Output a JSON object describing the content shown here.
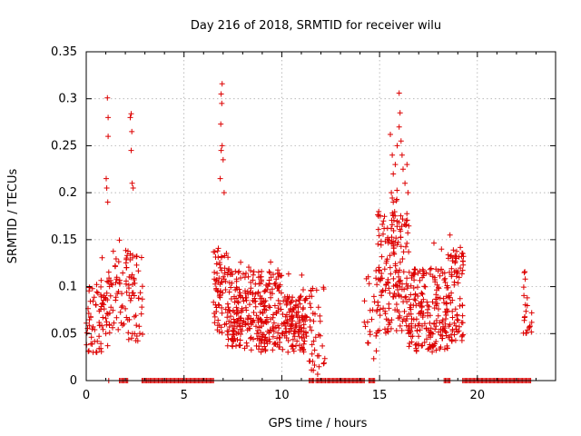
{
  "chart_data": {
    "type": "scatter",
    "title": "Day 216 of 2018, SRMTID for receiver wilu",
    "xlabel": "GPS time / hours",
    "ylabel": "SRMTID / TECUs",
    "xlim": [
      0,
      24
    ],
    "ylim": [
      0,
      0.35
    ],
    "x_ticks": [
      0,
      5,
      10,
      15,
      20
    ],
    "x_tick_labels": [
      "0",
      "5",
      "10",
      "15",
      "20"
    ],
    "y_ticks": [
      0,
      0.05,
      0.1,
      0.15,
      0.2,
      0.25,
      0.3,
      0.35
    ],
    "y_tick_labels": [
      "0",
      "0.05",
      "0.1",
      "0.15",
      "0.2",
      "0.25",
      "0.3",
      "0.35"
    ],
    "grid": true,
    "marker": "plus",
    "series_color": "#dd0000",
    "clusters": [
      {
        "name": "00-01h",
        "x_range": [
          0.0,
          1.1
        ],
        "base_range": [
          0.03,
          0.1
        ],
        "n": 70
      },
      {
        "name": "01-02h",
        "x_range": [
          1.0,
          2.0
        ],
        "base_range": [
          0.05,
          0.13
        ],
        "n": 45
      },
      {
        "name": "02-03h",
        "x_range": [
          2.0,
          2.9
        ],
        "base_range": [
          0.04,
          0.14
        ],
        "n": 60
      },
      {
        "name": "06-07h",
        "x_range": [
          6.5,
          7.3
        ],
        "base_range": [
          0.05,
          0.14
        ],
        "n": 70
      },
      {
        "name": "07-10h",
        "x_range": [
          7.2,
          10.0
        ],
        "base_range": [
          0.03,
          0.12
        ],
        "n": 300
      },
      {
        "name": "10-11h",
        "x_range": [
          10.0,
          11.3
        ],
        "base_range": [
          0.03,
          0.09
        ],
        "n": 130
      },
      {
        "name": "11-12h",
        "x_range": [
          11.4,
          12.2
        ],
        "base_range": [
          0.005,
          0.1
        ],
        "n": 40
      },
      {
        "name": "14-15h",
        "x_range": [
          14.2,
          14.9
        ],
        "base_range": [
          0.02,
          0.12
        ],
        "n": 25
      },
      {
        "name": "15-16.5h",
        "x_range": [
          14.9,
          16.5
        ],
        "base_range": [
          0.05,
          0.18
        ],
        "n": 180
      },
      {
        "name": "16.5-18.5h",
        "x_range": [
          16.5,
          18.5
        ],
        "base_range": [
          0.03,
          0.12
        ],
        "n": 200
      },
      {
        "name": "18.5-19.3h",
        "x_range": [
          18.5,
          19.3
        ],
        "base_range": [
          0.04,
          0.14
        ],
        "n": 80
      },
      {
        "name": "22-23h",
        "x_range": [
          22.3,
          22.8
        ],
        "base_range": [
          0.05,
          0.1
        ],
        "n": 20
      }
    ],
    "peaks": [
      {
        "x": 1.08,
        "y": 0.301
      },
      {
        "x": 1.12,
        "y": 0.28
      },
      {
        "x": 1.12,
        "y": 0.26
      },
      {
        "x": 1.02,
        "y": 0.215
      },
      {
        "x": 1.05,
        "y": 0.205
      },
      {
        "x": 1.1,
        "y": 0.19
      },
      {
        "x": 2.3,
        "y": 0.284
      },
      {
        "x": 2.25,
        "y": 0.28
      },
      {
        "x": 2.33,
        "y": 0.265
      },
      {
        "x": 2.3,
        "y": 0.245
      },
      {
        "x": 2.35,
        "y": 0.21
      },
      {
        "x": 2.4,
        "y": 0.205
      },
      {
        "x": 6.95,
        "y": 0.316
      },
      {
        "x": 6.9,
        "y": 0.305
      },
      {
        "x": 6.93,
        "y": 0.295
      },
      {
        "x": 6.88,
        "y": 0.273
      },
      {
        "x": 6.95,
        "y": 0.25
      },
      {
        "x": 6.9,
        "y": 0.245
      },
      {
        "x": 7.0,
        "y": 0.235
      },
      {
        "x": 6.85,
        "y": 0.215
      },
      {
        "x": 7.05,
        "y": 0.2
      },
      {
        "x": 15.55,
        "y": 0.262
      },
      {
        "x": 15.65,
        "y": 0.24
      },
      {
        "x": 15.7,
        "y": 0.22
      },
      {
        "x": 15.8,
        "y": 0.23
      },
      {
        "x": 15.9,
        "y": 0.25
      },
      {
        "x": 16.0,
        "y": 0.306
      },
      {
        "x": 16.05,
        "y": 0.285
      },
      {
        "x": 16.0,
        "y": 0.27
      },
      {
        "x": 16.1,
        "y": 0.255
      },
      {
        "x": 16.15,
        "y": 0.24
      },
      {
        "x": 16.2,
        "y": 0.225
      },
      {
        "x": 16.3,
        "y": 0.21
      },
      {
        "x": 16.4,
        "y": 0.23
      },
      {
        "x": 16.45,
        "y": 0.2
      },
      {
        "x": 15.6,
        "y": 0.2
      },
      {
        "x": 15.7,
        "y": 0.19
      },
      {
        "x": 14.95,
        "y": 0.175
      },
      {
        "x": 15.2,
        "y": 0.17
      },
      {
        "x": 18.6,
        "y": 0.155
      },
      {
        "x": 22.4,
        "y": 0.115
      },
      {
        "x": 22.45,
        "y": 0.108
      }
    ],
    "zero_segments": [
      [
        1.15,
        1.2
      ],
      [
        1.7,
        2.15
      ],
      [
        2.85,
        6.55
      ],
      [
        11.4,
        11.65
      ],
      [
        11.75,
        12.25
      ],
      [
        12.3,
        14.25
      ],
      [
        14.45,
        14.8
      ],
      [
        18.3,
        18.6
      ],
      [
        19.25,
        22.75
      ]
    ]
  }
}
